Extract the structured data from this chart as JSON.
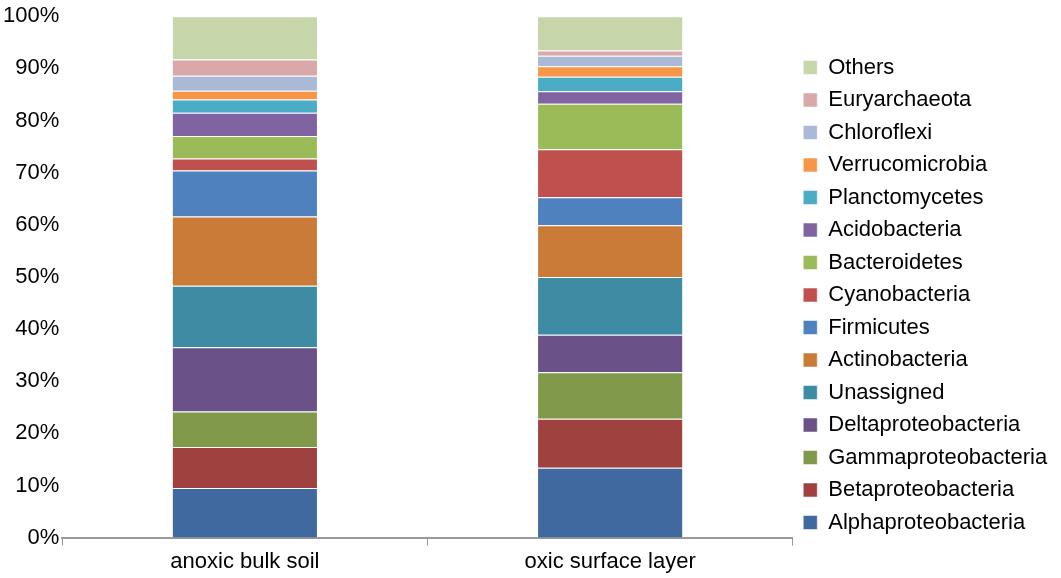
{
  "chart_data": {
    "type": "bar",
    "stacked": true,
    "categories": [
      "anoxic bulk soil",
      "oxic surface layer"
    ],
    "series": [
      {
        "name": "Alphaproteobacteria",
        "color": "#4069a0",
        "values": [
          9.5,
          13.4
        ]
      },
      {
        "name": "Betaproteobacteria",
        "color": "#9e413f",
        "values": [
          7.9,
          9.4
        ]
      },
      {
        "name": "Gammaproteobacteria",
        "color": "#80994a",
        "values": [
          6.8,
          8.9
        ]
      },
      {
        "name": "Deltaproteobacteria",
        "color": "#6a5187",
        "values": [
          12.3,
          7.2
        ]
      },
      {
        "name": "Unassigned",
        "color": "#3d8ca3",
        "values": [
          11.8,
          11.1
        ]
      },
      {
        "name": "Actinobacteria",
        "color": "#cb7b38",
        "values": [
          13.3,
          9.9
        ]
      },
      {
        "name": "Firmicutes",
        "color": "#4e81bd",
        "values": [
          8.8,
          5.4
        ]
      },
      {
        "name": "Cyanobacteria",
        "color": "#c0504e",
        "values": [
          2.3,
          9.2
        ]
      },
      {
        "name": "Bacteroidetes",
        "color": "#9bbb59",
        "values": [
          4.3,
          8.7
        ]
      },
      {
        "name": "Acidobacteria",
        "color": "#8064a2",
        "values": [
          4.5,
          2.4
        ]
      },
      {
        "name": "Planctomycetes",
        "color": "#4bacc6",
        "values": [
          2.5,
          2.8
        ]
      },
      {
        "name": "Verrucomicrobia",
        "color": "#f79646",
        "values": [
          1.7,
          2.0
        ]
      },
      {
        "name": "Chloroflexi",
        "color": "#aab9d6",
        "values": [
          2.9,
          2.0
        ]
      },
      {
        "name": "Euryarchaeota",
        "color": "#d9a8a8",
        "values": [
          3.1,
          1.0
        ]
      },
      {
        "name": "Others",
        "color": "#c6d5aa",
        "values": [
          8.3,
          6.6
        ]
      }
    ],
    "ylim": [
      0,
      100
    ],
    "yticks": [
      {
        "value": 0,
        "label": "0%"
      },
      {
        "value": 10,
        "label": "10%"
      },
      {
        "value": 20,
        "label": "20%"
      },
      {
        "value": 30,
        "label": "30%"
      },
      {
        "value": 40,
        "label": "40%"
      },
      {
        "value": 50,
        "label": "50%"
      },
      {
        "value": 60,
        "label": "60%"
      },
      {
        "value": 70,
        "label": "70%"
      },
      {
        "value": 80,
        "label": "80%"
      },
      {
        "value": 90,
        "label": "90%"
      },
      {
        "value": 100,
        "label": "100%"
      }
    ],
    "grid": false,
    "legend": "right"
  }
}
